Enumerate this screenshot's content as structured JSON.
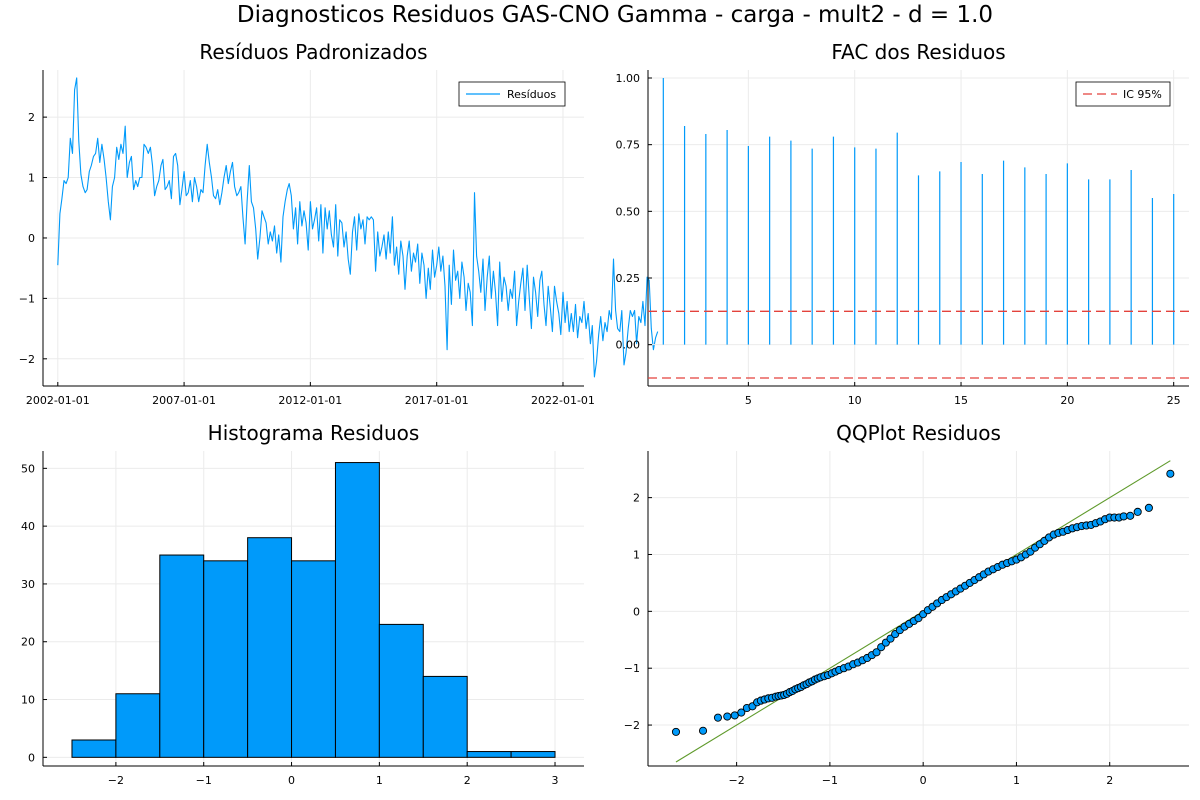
{
  "figure_title": "Diagnosticos Residuos  GAS-CNO Gamma - carga - mult2 - d = 1.0",
  "colors": {
    "series": "#009AFA",
    "ci": "#E3423C",
    "refline": "#5F9A2B",
    "grid": "#EBEBEB",
    "edge": "#000000"
  },
  "chart_data": [
    {
      "id": "residuos",
      "type": "line",
      "title": "Resíduos Padronizados",
      "legend": {
        "position": "top-right",
        "entries": [
          "Resíduos"
        ]
      },
      "x_is_dates": true,
      "x_start": "2002-01-01",
      "x_step": "monthly",
      "xlim": [
        "2001-06-01",
        "2022-11-01"
      ],
      "xticks": [
        "2002-01-01",
        "2007-01-01",
        "2012-01-01",
        "2017-01-01",
        "2022-01-01"
      ],
      "ylim": [
        -2.45,
        2.78
      ],
      "yticks": [
        -2,
        -1,
        0,
        1,
        2
      ],
      "grid": true,
      "values": [
        -0.45,
        0.4,
        0.65,
        0.95,
        0.9,
        1.0,
        1.65,
        1.4,
        2.45,
        2.65,
        1.6,
        1.05,
        0.85,
        0.75,
        0.8,
        1.1,
        1.2,
        1.35,
        1.4,
        1.65,
        1.25,
        1.55,
        1.3,
        1.0,
        0.6,
        0.3,
        0.85,
        1.0,
        1.5,
        1.3,
        1.55,
        1.4,
        1.85,
        1.0,
        1.25,
        1.35,
        0.8,
        0.95,
        0.85,
        1.0,
        1.0,
        1.55,
        1.5,
        1.4,
        1.5,
        1.2,
        0.7,
        0.85,
        0.95,
        1.2,
        1.3,
        0.8,
        0.85,
        0.95,
        0.65,
        1.35,
        1.4,
        1.2,
        0.55,
        0.8,
        1.1,
        0.7,
        0.75,
        0.95,
        0.6,
        1.0,
        0.85,
        0.6,
        0.8,
        0.75,
        1.2,
        1.55,
        1.25,
        1.0,
        0.7,
        0.65,
        0.8,
        0.55,
        0.75,
        1.0,
        1.2,
        0.9,
        1.1,
        1.25,
        0.85,
        0.7,
        0.75,
        0.85,
        0.35,
        -0.1,
        0.6,
        1.2,
        0.6,
        0.5,
        0.15,
        -0.35,
        0.0,
        0.45,
        0.35,
        0.25,
        -0.1,
        0.1,
        -0.05,
        0.2,
        -0.25,
        0.05,
        -0.4,
        0.35,
        0.6,
        0.8,
        0.9,
        0.7,
        0.15,
        0.5,
        -0.1,
        0.6,
        0.2,
        0.45,
        0.25,
        -0.2,
        0.6,
        0.15,
        0.3,
        0.5,
        -0.05,
        0.55,
        -0.25,
        0.5,
        0.15,
        0.45,
        0.05,
        -0.15,
        0.55,
        -0.3,
        0.3,
        0.25,
        -0.15,
        0.1,
        -0.35,
        -0.6,
        0.1,
        0.35,
        -0.2,
        0.4,
        0.15,
        0.3,
        -0.1,
        0.35,
        0.3,
        0.35,
        0.3,
        -0.55,
        0.1,
        -0.3,
        -0.15,
        0.05,
        -0.35,
        0.1,
        -0.25,
        0.35,
        -0.45,
        -0.15,
        -0.6,
        -0.05,
        -0.3,
        -0.85,
        -0.3,
        -0.05,
        -0.55,
        -0.25,
        -0.4,
        -0.1,
        -0.75,
        -0.25,
        -0.45,
        -1.0,
        -0.5,
        -0.85,
        -0.2,
        -0.65,
        -0.45,
        -0.15,
        -0.55,
        -0.3,
        -0.8,
        -1.85,
        -0.45,
        -1.1,
        -0.2,
        -0.7,
        -0.55,
        -1.0,
        -0.4,
        -0.65,
        -1.2,
        -0.75,
        -0.9,
        -1.45,
        0.75,
        -0.3,
        -0.55,
        -0.9,
        -0.35,
        -1.2,
        -0.65,
        -0.3,
        -1.0,
        -0.55,
        -0.9,
        -1.45,
        -0.4,
        -1.05,
        -0.65,
        -0.8,
        -1.2,
        -0.85,
        -1.0,
        -0.55,
        -1.45,
        -1.05,
        -0.75,
        -0.5,
        -1.2,
        -0.45,
        -1.0,
        -1.5,
        -0.65,
        -0.9,
        -1.3,
        -0.7,
        -0.55,
        -1.1,
        -1.45,
        -0.8,
        -1.15,
        -1.55,
        -0.8,
        -1.05,
        -1.25,
        -1.6,
        -0.9,
        -1.4,
        -1.05,
        -1.55,
        -1.25,
        -1.55,
        -1.1,
        -1.65,
        -1.3,
        -1.4,
        -1.05,
        -1.5,
        -1.25,
        -1.75,
        -1.45,
        -2.3,
        -2.05,
        -1.6,
        -1.3,
        -1.7,
        -1.4,
        -1.55,
        -1.2,
        -1.35,
        -0.35,
        -1.2,
        -1.5,
        -1.55,
        -1.2,
        -2.1,
        -1.9,
        -1.5,
        -1.2,
        -1.3,
        -1.2,
        -1.75,
        -1.3,
        -1.4,
        -1.05,
        -1.45,
        -0.65,
        -0.7,
        -1.5,
        -1.85,
        -1.65,
        -1.55
      ]
    },
    {
      "id": "fac",
      "type": "bar",
      "title": "FAC dos Residuos",
      "legend": {
        "position": "top-right",
        "entries": [
          "IC 95%"
        ]
      },
      "x": [
        1,
        2,
        3,
        4,
        5,
        6,
        7,
        8,
        9,
        10,
        11,
        12,
        13,
        14,
        15,
        16,
        17,
        18,
        19,
        20,
        21,
        22,
        23,
        24,
        25
      ],
      "values": [
        1.0,
        0.82,
        0.79,
        0.805,
        0.745,
        0.78,
        0.765,
        0.735,
        0.78,
        0.74,
        0.735,
        0.795,
        0.635,
        0.65,
        0.685,
        0.64,
        0.69,
        0.665,
        0.64,
        0.68,
        0.62,
        0.62,
        0.655,
        0.55,
        0.565
      ],
      "ci": [
        0.125,
        -0.125
      ],
      "xlim": [
        0.28,
        25.72
      ],
      "ylim": [
        -0.155,
        1.03
      ],
      "xticks": [
        5,
        10,
        15,
        20,
        25
      ],
      "yticks": [
        0.0,
        0.25,
        0.5,
        0.75,
        1.0
      ],
      "ytick_labels": [
        "0.00",
        "0.25",
        "0.50",
        "0.75",
        "1.00"
      ],
      "grid": true
    },
    {
      "id": "hist",
      "type": "bar",
      "title": "Histograma Residuos",
      "bin_edges": [
        -2.5,
        -2.0,
        -1.5,
        -1.0,
        -0.5,
        0.0,
        0.5,
        1.0,
        1.5,
        2.0,
        2.5,
        3.0
      ],
      "values": [
        3,
        11,
        35,
        34,
        38,
        34,
        51,
        23,
        14,
        1,
        1
      ],
      "xlim": [
        -2.83,
        3.33
      ],
      "ylim": [
        -1.5,
        53.0
      ],
      "xticks": [
        -2,
        -1,
        0,
        1,
        2,
        3
      ],
      "yticks": [
        0,
        10,
        20,
        30,
        40,
        50
      ],
      "grid": true
    },
    {
      "id": "qq",
      "type": "scatter",
      "title": "QQPlot Residuos",
      "ref_line": [
        [
          -2.65,
          -2.65
        ],
        [
          2.65,
          2.65
        ]
      ],
      "points": [
        [
          -2.65,
          -2.12
        ],
        [
          -2.36,
          -2.1
        ],
        [
          -2.2,
          -1.87
        ],
        [
          -2.1,
          -1.85
        ],
        [
          -2.02,
          -1.83
        ],
        [
          -1.95,
          -1.78
        ],
        [
          -1.89,
          -1.7
        ],
        [
          -1.83,
          -1.67
        ],
        [
          -1.78,
          -1.6
        ],
        [
          -1.74,
          -1.57
        ],
        [
          -1.7,
          -1.55
        ],
        [
          -1.66,
          -1.53
        ],
        [
          -1.62,
          -1.52
        ],
        [
          -1.58,
          -1.5
        ],
        [
          -1.55,
          -1.49
        ],
        [
          -1.52,
          -1.48
        ],
        [
          -1.49,
          -1.47
        ],
        [
          -1.46,
          -1.45
        ],
        [
          -1.43,
          -1.42
        ],
        [
          -1.4,
          -1.4
        ],
        [
          -1.37,
          -1.37
        ],
        [
          -1.34,
          -1.35
        ],
        [
          -1.31,
          -1.33
        ],
        [
          -1.28,
          -1.3
        ],
        [
          -1.25,
          -1.28
        ],
        [
          -1.22,
          -1.25
        ],
        [
          -1.19,
          -1.23
        ],
        [
          -1.16,
          -1.2
        ],
        [
          -1.13,
          -1.18
        ],
        [
          -1.1,
          -1.16
        ],
        [
          -1.06,
          -1.14
        ],
        [
          -1.02,
          -1.12
        ],
        [
          -0.98,
          -1.09
        ],
        [
          -0.94,
          -1.06
        ],
        [
          -0.9,
          -1.03
        ],
        [
          -0.85,
          -1.0
        ],
        [
          -0.8,
          -0.97
        ],
        [
          -0.75,
          -0.93
        ],
        [
          -0.7,
          -0.9
        ],
        [
          -0.65,
          -0.86
        ],
        [
          -0.6,
          -0.82
        ],
        [
          -0.55,
          -0.77
        ],
        [
          -0.5,
          -0.72
        ],
        [
          -0.45,
          -0.63
        ],
        [
          -0.4,
          -0.55
        ],
        [
          -0.35,
          -0.48
        ],
        [
          -0.3,
          -0.4
        ],
        [
          -0.25,
          -0.33
        ],
        [
          -0.2,
          -0.27
        ],
        [
          -0.15,
          -0.22
        ],
        [
          -0.1,
          -0.17
        ],
        [
          -0.05,
          -0.12
        ],
        [
          0.0,
          -0.05
        ],
        [
          0.05,
          0.02
        ],
        [
          0.1,
          0.08
        ],
        [
          0.15,
          0.14
        ],
        [
          0.2,
          0.2
        ],
        [
          0.25,
          0.25
        ],
        [
          0.3,
          0.3
        ],
        [
          0.35,
          0.35
        ],
        [
          0.4,
          0.4
        ],
        [
          0.45,
          0.45
        ],
        [
          0.5,
          0.5
        ],
        [
          0.55,
          0.55
        ],
        [
          0.6,
          0.6
        ],
        [
          0.65,
          0.65
        ],
        [
          0.7,
          0.7
        ],
        [
          0.75,
          0.74
        ],
        [
          0.8,
          0.78
        ],
        [
          0.85,
          0.82
        ],
        [
          0.9,
          0.85
        ],
        [
          0.95,
          0.88
        ],
        [
          1.0,
          0.91
        ],
        [
          1.05,
          0.95
        ],
        [
          1.1,
          1.0
        ],
        [
          1.15,
          1.05
        ],
        [
          1.2,
          1.12
        ],
        [
          1.25,
          1.18
        ],
        [
          1.3,
          1.24
        ],
        [
          1.35,
          1.3
        ],
        [
          1.4,
          1.35
        ],
        [
          1.45,
          1.38
        ],
        [
          1.5,
          1.4
        ],
        [
          1.55,
          1.43
        ],
        [
          1.6,
          1.46
        ],
        [
          1.65,
          1.48
        ],
        [
          1.7,
          1.5
        ],
        [
          1.75,
          1.51
        ],
        [
          1.8,
          1.52
        ],
        [
          1.85,
          1.55
        ],
        [
          1.9,
          1.58
        ],
        [
          1.95,
          1.62
        ],
        [
          2.0,
          1.65
        ],
        [
          2.05,
          1.65
        ],
        [
          2.1,
          1.65
        ],
        [
          2.15,
          1.67
        ],
        [
          2.22,
          1.68
        ],
        [
          2.3,
          1.75
        ],
        [
          2.42,
          1.82
        ],
        [
          2.65,
          2.42
        ]
      ],
      "xlim": [
        -2.95,
        2.85
      ],
      "ylim": [
        -2.72,
        2.82
      ],
      "xticks": [
        -2,
        -1,
        0,
        1,
        2
      ],
      "yticks": [
        -2,
        -1,
        0,
        1,
        2
      ],
      "grid": true
    }
  ]
}
